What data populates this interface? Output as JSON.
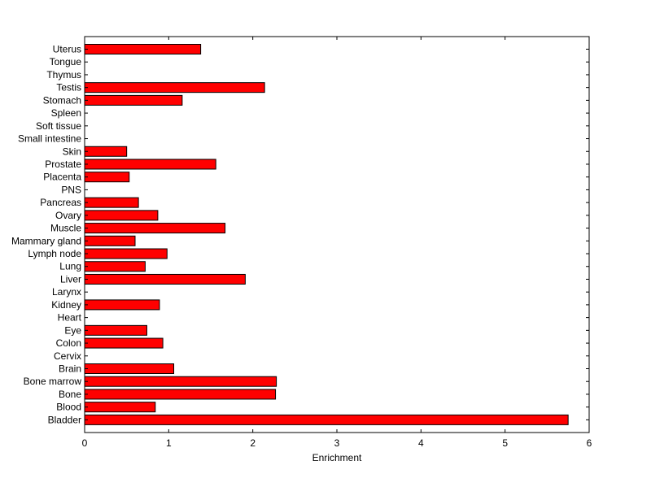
{
  "chart_data": {
    "type": "bar",
    "orientation": "horizontal",
    "categories": [
      "Uterus",
      "Tongue",
      "Thymus",
      "Testis",
      "Stomach",
      "Spleen",
      "Soft tissue",
      "Small intestine",
      "Skin",
      "Prostate",
      "Placenta",
      "PNS",
      "Pancreas",
      "Ovary",
      "Muscle",
      "Mammary gland",
      "Lymph node",
      "Lung",
      "Liver",
      "Larynx",
      "Kidney",
      "Heart",
      "Eye",
      "Colon",
      "Cervix",
      "Brain",
      "Bone marrow",
      "Bone",
      "Blood",
      "Bladder"
    ],
    "values": [
      1.38,
      0,
      0,
      2.14,
      1.16,
      0,
      0,
      0,
      0.5,
      1.56,
      0.53,
      0,
      0.64,
      0.87,
      1.67,
      0.6,
      0.98,
      0.72,
      1.91,
      0,
      0.89,
      0,
      0.74,
      0.93,
      0,
      1.06,
      2.28,
      2.27,
      0.84,
      5.75
    ],
    "xlabel": "Enrichment",
    "ylabel": "",
    "title": "",
    "xlim": [
      0,
      6
    ],
    "xticks": [
      0,
      1,
      2,
      3,
      4,
      5,
      6
    ],
    "grid": false,
    "bar_color": "#ff0000",
    "bar_edge_color": "#000000"
  }
}
